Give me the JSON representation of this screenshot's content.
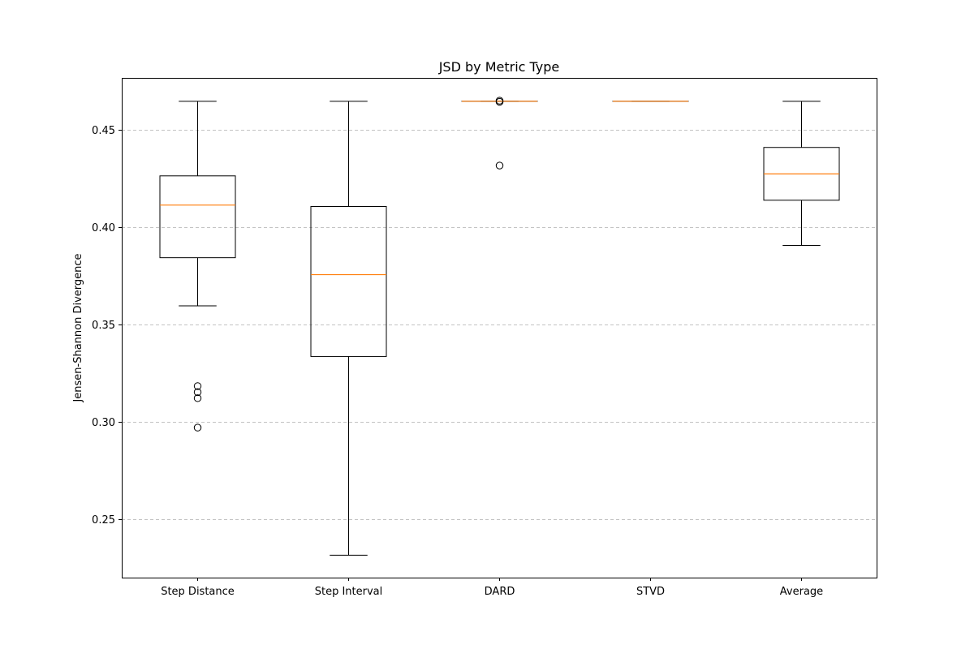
{
  "chart_data": {
    "type": "boxplot",
    "title": "JSD by Metric Type",
    "xlabel": "",
    "ylabel": "Jensen-Shannon Divergence",
    "ylim": [
      0.22,
      0.4765
    ],
    "yticks": [
      "0.25",
      "0.30",
      "0.35",
      "0.40",
      "0.45"
    ],
    "grid": "y-dashed",
    "categories": [
      "Step Distance",
      "Step Interval",
      "DARD",
      "STVD",
      "Average"
    ],
    "boxes": [
      {
        "name": "Step Distance",
        "whisker_low": 0.3595,
        "q1": 0.3842,
        "median": 0.4112,
        "q3": 0.4262,
        "whisker_high": 0.4645,
        "outliers": [
          0.3183,
          0.3152,
          0.3121,
          0.297
        ]
      },
      {
        "name": "Step Interval",
        "whisker_low": 0.2315,
        "q1": 0.3335,
        "median": 0.3755,
        "q3": 0.4105,
        "whisker_high": 0.4645,
        "outliers": []
      },
      {
        "name": "DARD",
        "whisker_low": 0.4645,
        "q1": 0.4645,
        "median": 0.4645,
        "q3": 0.4645,
        "whisker_high": 0.4645,
        "outliers": [
          0.4648,
          0.4642,
          0.4315
        ]
      },
      {
        "name": "STVD",
        "whisker_low": 0.4645,
        "q1": 0.4645,
        "median": 0.4645,
        "q3": 0.4645,
        "whisker_high": 0.4645,
        "outliers": []
      },
      {
        "name": "Average",
        "whisker_low": 0.3905,
        "q1": 0.4137,
        "median": 0.4272,
        "q3": 0.4408,
        "whisker_high": 0.4645,
        "outliers": []
      }
    ],
    "colors": {
      "box": "#000000",
      "median": "#ff7f0e",
      "grid": "#b0b0b0"
    }
  }
}
